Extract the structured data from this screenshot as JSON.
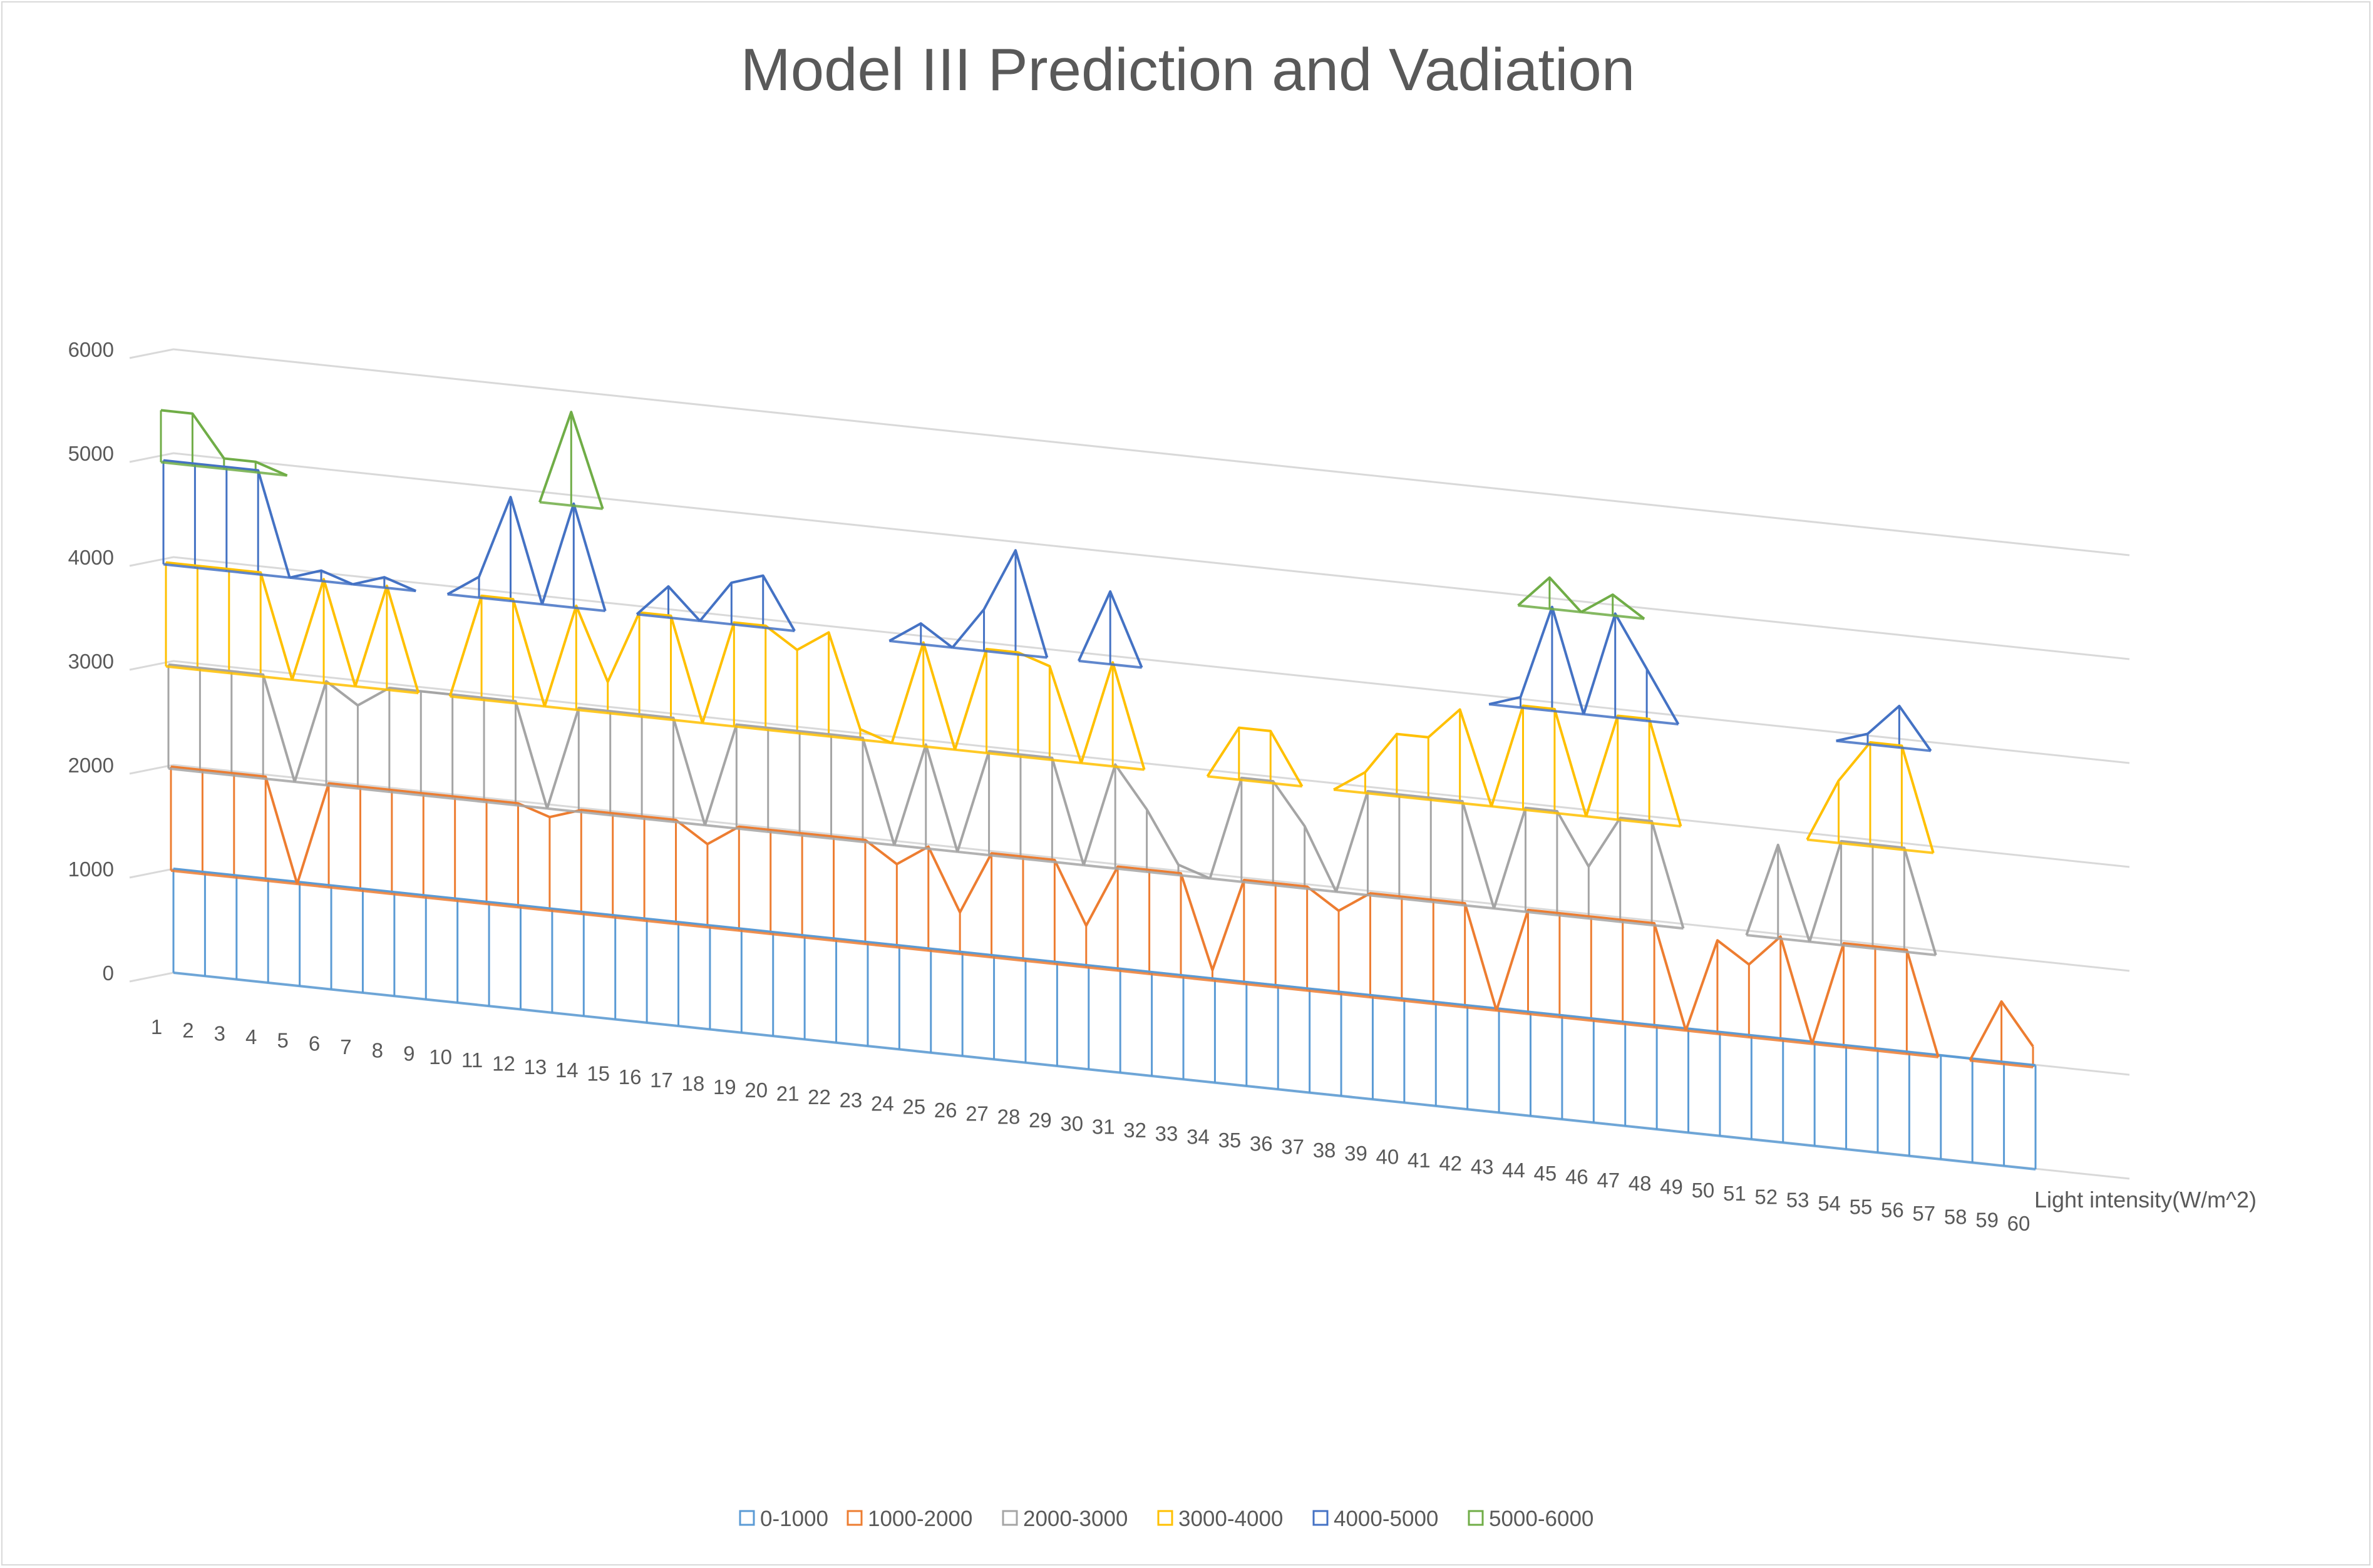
{
  "chart_data": {
    "type": "3d-line-surface",
    "title": "Model III Prediction  and Vadiation",
    "xlabel": "Light intensity(W/m^2)",
    "ylabel": "",
    "ylim": [
      0,
      6000
    ],
    "yticks": [
      "0",
      "1000",
      "2000",
      "3000",
      "4000",
      "5000",
      "6000"
    ],
    "x": [
      "1",
      "2",
      "3",
      "4",
      "5",
      "6",
      "7",
      "8",
      "9",
      "10",
      "11",
      "12",
      "13",
      "14",
      "15",
      "16",
      "17",
      "18",
      "19",
      "20",
      "21",
      "22",
      "23",
      "24",
      "25",
      "26",
      "27",
      "28",
      "29",
      "30",
      "31",
      "32",
      "33",
      "34",
      "35",
      "36",
      "37",
      "38",
      "39",
      "40",
      "41",
      "42",
      "43",
      "44",
      "45",
      "46",
      "47",
      "48",
      "49",
      "50",
      "51",
      "52",
      "53",
      "54",
      "55",
      "56",
      "57",
      "58",
      "59",
      "60"
    ],
    "legend_position": "bottom",
    "series": [
      {
        "name": "0-1000",
        "color": "#5b9bd5"
      },
      {
        "name": "1000-2000",
        "color": "#ed7d31"
      },
      {
        "name": "2000-3000",
        "color": "#a5a5a5"
      },
      {
        "name": "3000-4000",
        "color": "#ffc000"
      },
      {
        "name": "4000-5000",
        "color": "#4472c4"
      },
      {
        "name": "5000-6000",
        "color": "#70ad47"
      }
    ],
    "values": [
      5500,
      5500,
      5100,
      5100,
      1000,
      4100,
      2800,
      4100,
      3000,
      3000,
      4200,
      5000,
      1900,
      5900,
      3300,
      4000,
      4300,
      1800,
      4400,
      4500,
      3800,
      4000,
      3100,
      1800,
      4200,
      1400,
      4400,
      5000,
      3900,
      1400,
      4700,
      2600,
      2100,
      1100,
      3500,
      3500,
      2600,
      1800,
      3200,
      3600,
      3600,
      3900,
      1000,
      4100,
      5300,
      2500,
      5200,
      4500,
      1000,
      1900,
      1700,
      2900,
      1000,
      3600,
      4100,
      4400,
      1000,
      1000,
      1600,
      1200
    ]
  }
}
